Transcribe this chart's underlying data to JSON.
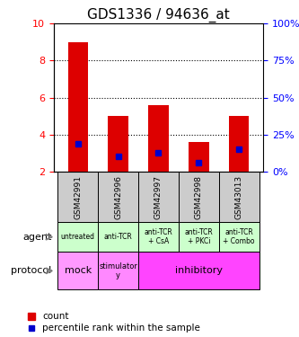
{
  "title": "GDS1336 / 94636_at",
  "samples": [
    "GSM42991",
    "GSM42996",
    "GSM42997",
    "GSM42998",
    "GSM43013"
  ],
  "bar_bottoms": [
    2.0,
    2.0,
    2.0,
    2.0,
    2.0
  ],
  "bar_tops": [
    9.0,
    5.0,
    5.6,
    3.6,
    5.0
  ],
  "blue_marks": [
    3.5,
    2.8,
    3.0,
    2.5,
    3.2
  ],
  "ylim": [
    2,
    10
  ],
  "yticks_left": [
    2,
    4,
    6,
    8,
    10
  ],
  "yticks_right": [
    0,
    25,
    50,
    75,
    100
  ],
  "yticks_right_vals": [
    2,
    4,
    6,
    8,
    10
  ],
  "bar_color": "#dd0000",
  "blue_color": "#0000cc",
  "agent_labels": [
    "untreated",
    "anti-TCR",
    "anti-TCR\n+ CsA",
    "anti-TCR\n+ PKCi",
    "anti-TCR\n+ Combo"
  ],
  "agent_bg": "#ccffcc",
  "protocol_labels": [
    "mock",
    "stimulator\ny",
    "inhibitory",
    "inhibitory",
    "inhibitory"
  ],
  "protocol_mock_bg": "#ff88ff",
  "protocol_stim_bg": "#ff88ff",
  "protocol_inhib_bg": "#ff44ff",
  "sample_bg": "#cccccc",
  "row_label_agent": "agent",
  "row_label_protocol": "protocol",
  "legend_count": "count",
  "legend_pct": "percentile rank within the sample",
  "grid_color": "#888888",
  "title_fontsize": 11,
  "tick_fontsize": 8,
  "label_fontsize": 9
}
